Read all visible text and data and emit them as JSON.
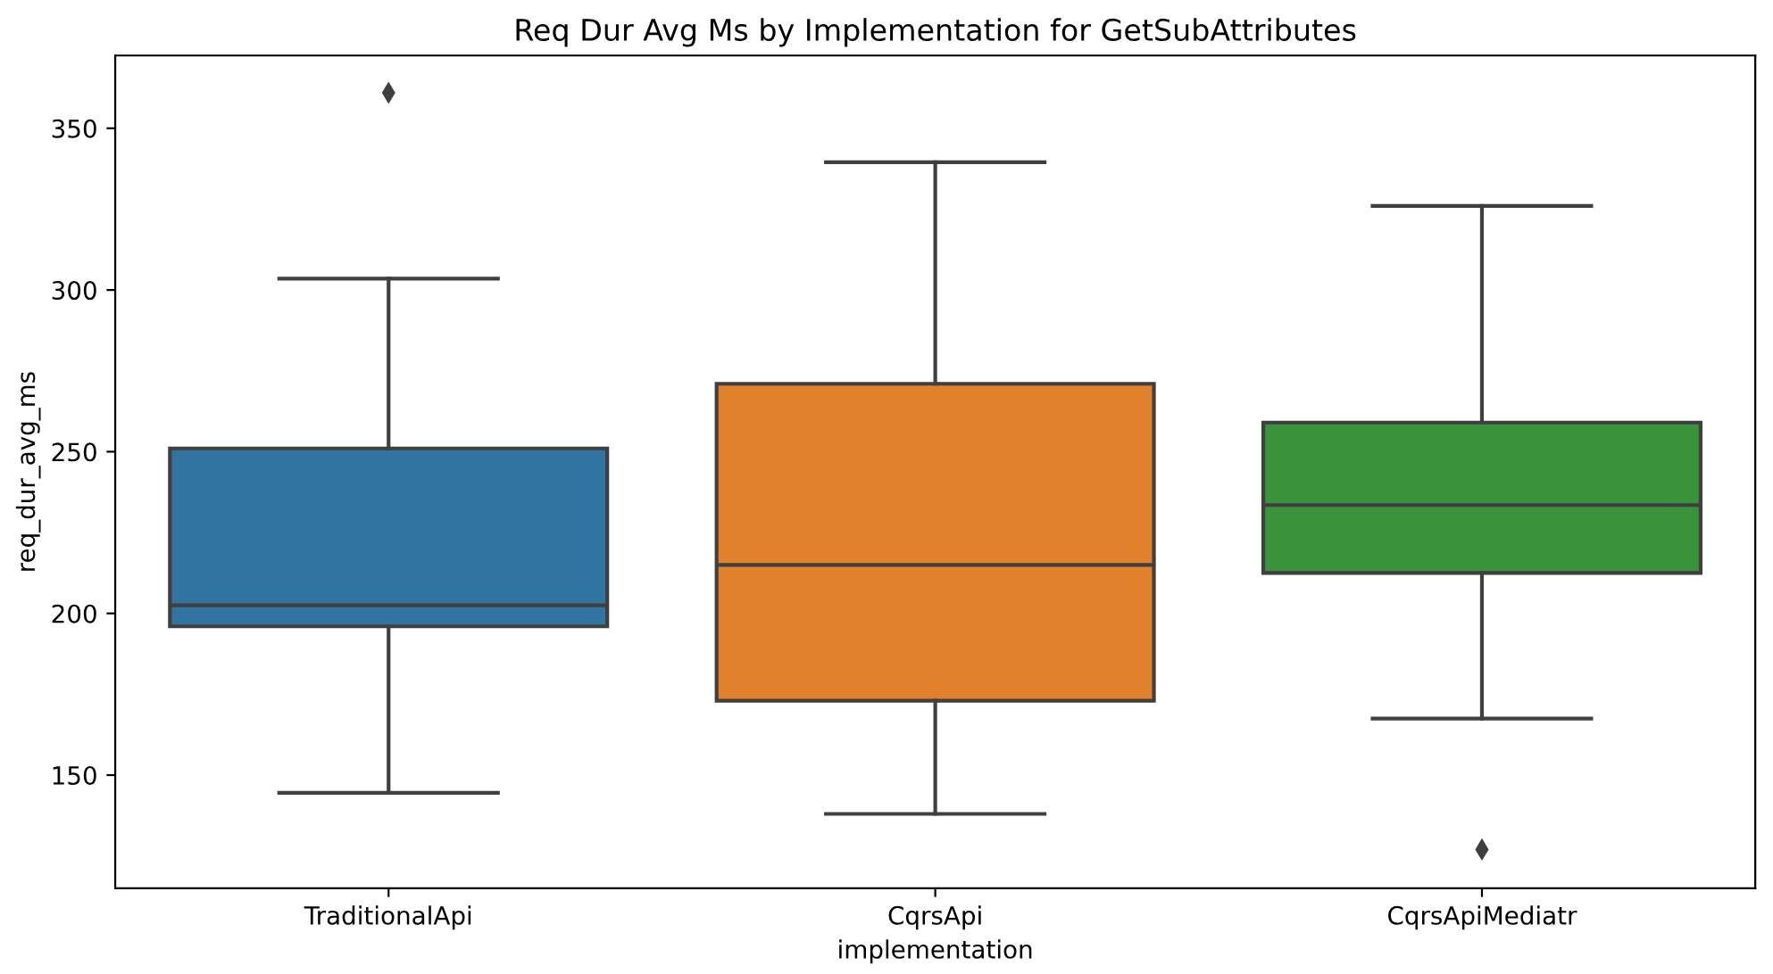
{
  "chart_data": {
    "type": "box",
    "title": "Req Dur Avg Ms by Implementation for GetSubAttributes",
    "xlabel": "implementation",
    "ylabel": "req_dur_avg_ms",
    "categories": [
      "TraditionalApi",
      "CqrsApi",
      "CqrsApiMediatr"
    ],
    "colors": [
      "#3274a1",
      "#e1812c",
      "#3a923a"
    ],
    "boxes": [
      {
        "low": 144.5,
        "q1": 196,
        "median": 202.5,
        "q3": 251,
        "high": 303.5,
        "outliers": [
          361
        ]
      },
      {
        "low": 138,
        "q1": 173,
        "median": 215,
        "q3": 271,
        "high": 339.5
      },
      {
        "low": 167.5,
        "q1": 212.5,
        "median": 233.5,
        "q3": 259,
        "high": 326,
        "outliers": [
          127
        ]
      }
    ],
    "ylim": [
      115,
      372.5
    ],
    "yticks": [
      150,
      200,
      250,
      300,
      350
    ],
    "grid": false,
    "marker": "diamond"
  }
}
